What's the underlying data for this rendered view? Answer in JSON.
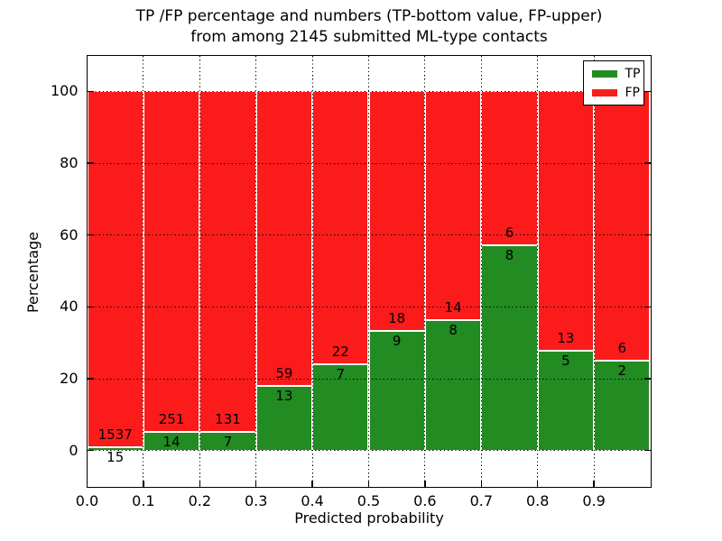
{
  "figure": {
    "title_line1": "TP /FP percentage and numbers (TP-bottom value, FP-upper)",
    "title_line2": "from among 2145 submitted ML-type contacts",
    "xlabel": "Predicted probability",
    "ylabel": "Percentage"
  },
  "colors": {
    "tp": "#228b22",
    "fp": "#fb1b1b",
    "grid": "#000000",
    "bar_edge": "#ffffff",
    "frame": "#000000",
    "background": "#ffffff"
  },
  "legend": {
    "position": "upper right",
    "items": [
      {
        "label": "TP",
        "color": "#228b22"
      },
      {
        "label": "FP",
        "color": "#fb1b1b"
      }
    ]
  },
  "chart_data": {
    "type": "bar",
    "stacked": true,
    "normalized": "each bin stacked to 100 percent",
    "title": "TP /FP percentage and numbers (TP-bottom value, FP-upper) from among 2145 submitted ML-type contacts",
    "xlabel": "Predicted probability",
    "ylabel": "Percentage",
    "total_submitted": 2145,
    "xlim": [
      0.0,
      1.0
    ],
    "ylim": [
      -10,
      110
    ],
    "grid": true,
    "legend_position": "upper right",
    "bin_edges": [
      0.0,
      0.1,
      0.2,
      0.3,
      0.4,
      0.5,
      0.6,
      0.7,
      0.8,
      0.9,
      1.0
    ],
    "x_tick_labels": [
      "0.0",
      "0.1",
      "0.2",
      "0.3",
      "0.4",
      "0.5",
      "0.6",
      "0.7",
      "0.8",
      "0.9"
    ],
    "y_tick_values": [
      0,
      20,
      40,
      60,
      80,
      100
    ],
    "series": [
      {
        "name": "TP",
        "color": "#228b22",
        "counts": [
          15,
          14,
          7,
          13,
          7,
          9,
          8,
          8,
          5,
          2
        ],
        "pct_of_bin": [
          0.97,
          5.28,
          5.07,
          18.06,
          24.14,
          33.33,
          36.36,
          57.14,
          27.78,
          25.0
        ]
      },
      {
        "name": "FP",
        "color": "#fb1b1b",
        "counts": [
          1537,
          251,
          131,
          59,
          22,
          18,
          14,
          6,
          13,
          6
        ],
        "pct_of_bin": [
          99.03,
          94.72,
          94.93,
          81.94,
          75.86,
          66.67,
          63.64,
          42.86,
          72.22,
          75.0
        ]
      }
    ]
  }
}
